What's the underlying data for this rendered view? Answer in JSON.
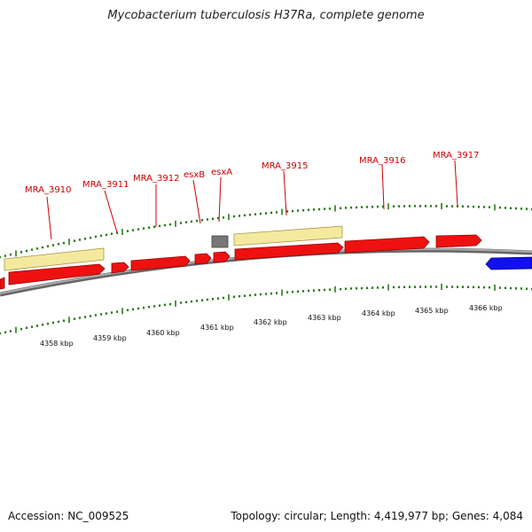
{
  "title": "Mycobacterium tuberculosis H37Ra, complete genome",
  "footer": {
    "accession": "Accession: NC_009525",
    "summary": "Topology: circular; Length: 4,419,977 bp; Genes: 4,084"
  },
  "colors": {
    "gene_forward": "#ee1111",
    "gene_reverse": "#1111ee",
    "gene_other": "#777777",
    "feature_band": "#f3eaa0",
    "backbone": "#888888",
    "tick": "#2a7a1a",
    "label": "#cc0000"
  },
  "gene_labels": [
    "MRA_3910",
    "MRA_3911",
    "MRA_3912",
    "esxB",
    "esxA",
    "MRA_3915",
    "MRA_3916",
    "MRA_3917"
  ],
  "kbp_labels": [
    "4358 kbp",
    "4359 kbp",
    "4360 kbp",
    "4361 kbp",
    "4362 kbp",
    "4363 kbp",
    "4364 kbp",
    "4365 kbp",
    "4366 kbp"
  ]
}
